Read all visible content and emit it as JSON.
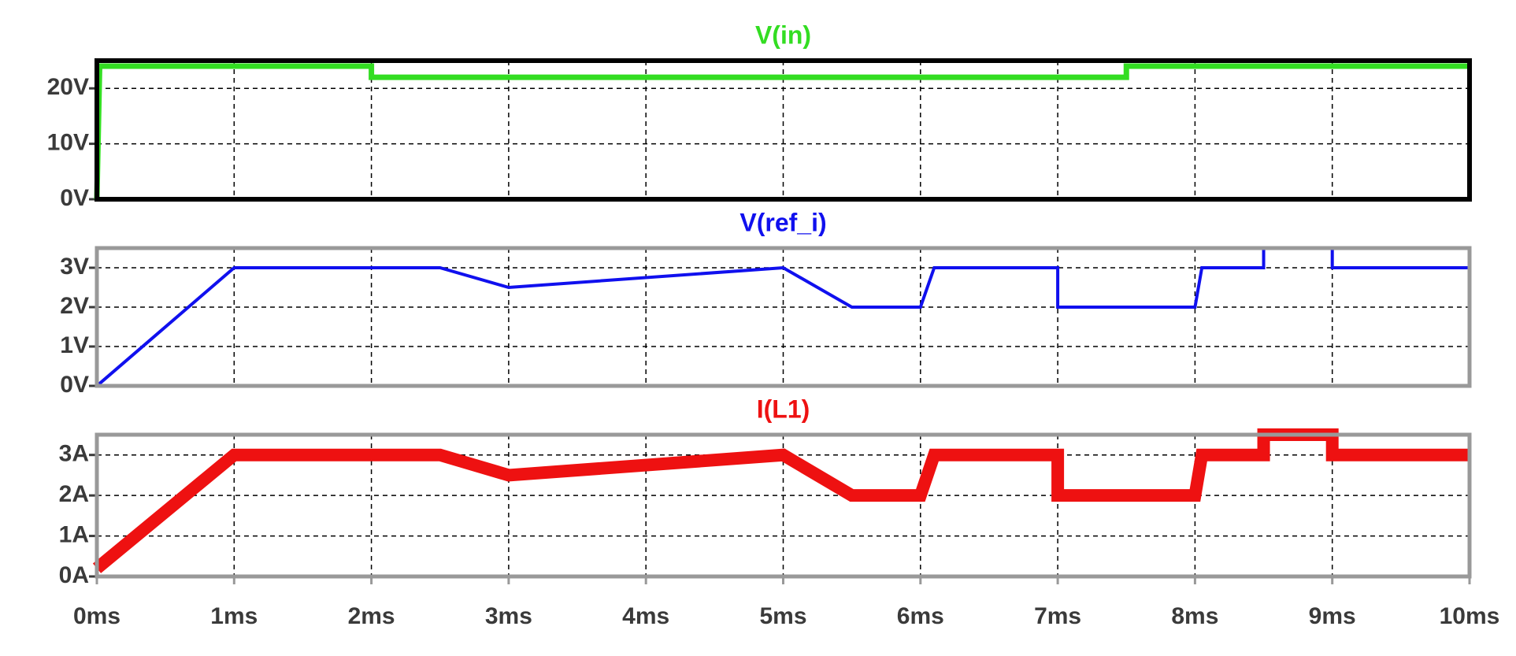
{
  "chart_data": [
    {
      "type": "line",
      "title": "V(in)",
      "color": "#33dd22",
      "grid": true,
      "xlim": [
        0,
        10
      ],
      "ylim": [
        0,
        25
      ],
      "yticks": [
        {
          "value": 0,
          "label": "0V"
        },
        {
          "value": 10,
          "label": "10V"
        },
        {
          "value": 20,
          "label": "20V"
        }
      ],
      "x": [
        0,
        0.02,
        2,
        2,
        7.5,
        7.5,
        10
      ],
      "values": [
        0,
        24,
        24,
        22,
        22,
        24,
        24
      ]
    },
    {
      "type": "line",
      "title": "V(ref_i)",
      "color": "#1010ee",
      "grid": true,
      "xlim": [
        0,
        10
      ],
      "ylim": [
        0,
        3.5
      ],
      "yticks": [
        {
          "value": 0,
          "label": "0V"
        },
        {
          "value": 1,
          "label": "1V"
        },
        {
          "value": 2,
          "label": "2V"
        },
        {
          "value": 3,
          "label": "3V"
        }
      ],
      "x": [
        0,
        1,
        2.5,
        3,
        5,
        5.5,
        6,
        6.1,
        7,
        7,
        8,
        8.05,
        8.5,
        8.5,
        9,
        9,
        10
      ],
      "values": [
        0,
        3,
        3,
        2.5,
        3,
        2,
        2,
        3,
        3,
        2,
        2,
        3,
        3,
        3.5,
        3.5,
        3,
        3
      ]
    },
    {
      "type": "line",
      "title": "I(L1)",
      "color": "#ee1111",
      "grid": true,
      "xlim": [
        0,
        10
      ],
      "ylim": [
        0,
        3.5
      ],
      "yticks": [
        {
          "value": 0,
          "label": "0A"
        },
        {
          "value": 1,
          "label": "1A"
        },
        {
          "value": 2,
          "label": "2A"
        },
        {
          "value": 3,
          "label": "3A"
        }
      ],
      "xticks": [
        {
          "value": 0,
          "label": "0ms"
        },
        {
          "value": 1,
          "label": "1ms"
        },
        {
          "value": 2,
          "label": "2ms"
        },
        {
          "value": 3,
          "label": "3ms"
        },
        {
          "value": 4,
          "label": "4ms"
        },
        {
          "value": 5,
          "label": "5ms"
        },
        {
          "value": 6,
          "label": "6ms"
        },
        {
          "value": 7,
          "label": "7ms"
        },
        {
          "value": 8,
          "label": "8ms"
        },
        {
          "value": 9,
          "label": "9ms"
        },
        {
          "value": 10,
          "label": "10ms"
        }
      ],
      "x": [
        0,
        1,
        2.5,
        3,
        5,
        5.5,
        6,
        6.1,
        7,
        7,
        8,
        8.05,
        8.5,
        8.5,
        9,
        9,
        10
      ],
      "values": [
        0.2,
        3,
        3,
        2.5,
        3,
        2,
        2,
        3,
        3,
        2,
        2,
        3,
        3,
        3.5,
        3.5,
        3,
        3
      ]
    }
  ]
}
